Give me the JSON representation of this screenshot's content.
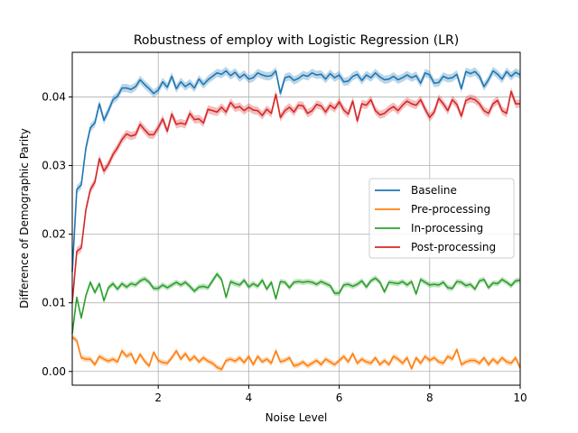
{
  "chart_data": {
    "type": "line",
    "title": "Robustness of employ with Logistic Regression (LR)",
    "xlabel": "Noise Level",
    "ylabel": "Difference of Demographic Parity",
    "xlim": [
      0.1,
      10
    ],
    "ylim": [
      -0.002,
      0.0465
    ],
    "xticks": [
      2,
      4,
      6,
      8,
      10
    ],
    "yticks": [
      0.0,
      0.01,
      0.02,
      0.03,
      0.04
    ],
    "ytick_labels": [
      "0.00",
      "0.01",
      "0.02",
      "0.03",
      "0.04"
    ],
    "grid": true,
    "legend_position": "center-right",
    "colors": {
      "Baseline": "#1f77b4",
      "Pre-processing": "#ff7f0e",
      "In-processing": "#2ca02c",
      "Post-processing": "#d62728"
    },
    "x": [
      0.1,
      0.2,
      0.3,
      0.4,
      0.5,
      0.6,
      0.7,
      0.8,
      0.9,
      1.0,
      1.1,
      1.2,
      1.3,
      1.4,
      1.5,
      1.6,
      1.7,
      1.8,
      1.9,
      2.0,
      2.1,
      2.2,
      2.3,
      2.4,
      2.5,
      2.6,
      2.7,
      2.8,
      2.9,
      3.0,
      3.1,
      3.2,
      3.3,
      3.4,
      3.5,
      3.6,
      3.7,
      3.8,
      3.9,
      4.0,
      4.1,
      4.2,
      4.3,
      4.4,
      4.5,
      4.6,
      4.7,
      4.8,
      4.9,
      5.0,
      5.1,
      5.2,
      5.3,
      5.4,
      5.5,
      5.6,
      5.7,
      5.8,
      5.9,
      6.0,
      6.1,
      6.2,
      6.3,
      6.4,
      6.5,
      6.6,
      6.7,
      6.8,
      6.9,
      7.0,
      7.1,
      7.2,
      7.3,
      7.4,
      7.5,
      7.6,
      7.7,
      7.8,
      7.9,
      8.0,
      8.1,
      8.2,
      8.3,
      8.4,
      8.5,
      8.6,
      8.7,
      8.8,
      8.9,
      9.0,
      9.1,
      9.2,
      9.3,
      9.4,
      9.5,
      9.6,
      9.7,
      9.8,
      9.9,
      10.0
    ],
    "series": [
      {
        "name": "Baseline",
        "values": [
          0.0145,
          0.0265,
          0.0272,
          0.0325,
          0.0355,
          0.0362,
          0.039,
          0.0366,
          0.038,
          0.0396,
          0.0401,
          0.0413,
          0.0413,
          0.0411,
          0.0415,
          0.0425,
          0.0418,
          0.0412,
          0.0405,
          0.041,
          0.0422,
          0.0414,
          0.043,
          0.0412,
          0.0422,
          0.0415,
          0.042,
          0.0413,
          0.0426,
          0.0418,
          0.0425,
          0.043,
          0.0435,
          0.0433,
          0.0438,
          0.0431,
          0.0436,
          0.0428,
          0.0433,
          0.0426,
          0.0428,
          0.0435,
          0.0432,
          0.043,
          0.0431,
          0.0438,
          0.0405,
          0.0428,
          0.043,
          0.0424,
          0.0427,
          0.0432,
          0.043,
          0.0435,
          0.0432,
          0.0433,
          0.0426,
          0.0434,
          0.0428,
          0.0432,
          0.0422,
          0.0423,
          0.043,
          0.0433,
          0.0424,
          0.0432,
          0.0428,
          0.0435,
          0.0429,
          0.0425,
          0.0426,
          0.043,
          0.0425,
          0.0428,
          0.0432,
          0.0428,
          0.0431,
          0.042,
          0.0435,
          0.0432,
          0.042,
          0.0421,
          0.043,
          0.0427,
          0.0428,
          0.0433,
          0.0412,
          0.0437,
          0.0434,
          0.0437,
          0.043,
          0.0415,
          0.0425,
          0.0438,
          0.0433,
          0.0426,
          0.0437,
          0.043,
          0.0436,
          0.0432
        ]
      },
      {
        "name": "Pre-processing",
        "values": [
          0.005,
          0.0045,
          0.002,
          0.0018,
          0.0018,
          0.001,
          0.0022,
          0.0018,
          0.0015,
          0.0018,
          0.0014,
          0.003,
          0.0022,
          0.0026,
          0.0012,
          0.0025,
          0.0015,
          0.0008,
          0.0028,
          0.0016,
          0.0013,
          0.0012,
          0.002,
          0.003,
          0.0018,
          0.0026,
          0.0016,
          0.0022,
          0.0014,
          0.002,
          0.0015,
          0.0012,
          0.0006,
          0.0003,
          0.0016,
          0.0018,
          0.0015,
          0.002,
          0.0013,
          0.0022,
          0.001,
          0.0022,
          0.0014,
          0.0018,
          0.0012,
          0.003,
          0.0014,
          0.0016,
          0.002,
          0.0008,
          0.001,
          0.0014,
          0.0008,
          0.0012,
          0.0016,
          0.001,
          0.0018,
          0.0014,
          0.001,
          0.0016,
          0.0022,
          0.0014,
          0.0026,
          0.0012,
          0.0018,
          0.0014,
          0.0012,
          0.002,
          0.001,
          0.0016,
          0.001,
          0.0022,
          0.0018,
          0.0012,
          0.002,
          0.0004,
          0.002,
          0.0012,
          0.0022,
          0.0016,
          0.002,
          0.0014,
          0.0012,
          0.0022,
          0.0018,
          0.0032,
          0.001,
          0.0014,
          0.0016,
          0.0016,
          0.0012,
          0.002,
          0.001,
          0.0018,
          0.0012,
          0.002,
          0.0014,
          0.0012,
          0.002,
          0.0005
        ]
      },
      {
        "name": "In-processing",
        "values": [
          0.0055,
          0.0108,
          0.0078,
          0.011,
          0.013,
          0.0115,
          0.0128,
          0.0103,
          0.0122,
          0.0128,
          0.012,
          0.0128,
          0.0123,
          0.0128,
          0.0126,
          0.0132,
          0.0135,
          0.013,
          0.0121,
          0.0121,
          0.0126,
          0.0122,
          0.0126,
          0.013,
          0.0126,
          0.013,
          0.0124,
          0.0117,
          0.0123,
          0.0124,
          0.0122,
          0.0132,
          0.0142,
          0.0134,
          0.0108,
          0.0131,
          0.0128,
          0.0126,
          0.0133,
          0.0123,
          0.0128,
          0.0124,
          0.0133,
          0.012,
          0.013,
          0.0106,
          0.0131,
          0.013,
          0.0122,
          0.013,
          0.0131,
          0.013,
          0.0131,
          0.013,
          0.0127,
          0.0131,
          0.0128,
          0.0125,
          0.0114,
          0.0114,
          0.0126,
          0.0127,
          0.0124,
          0.0127,
          0.0132,
          0.0123,
          0.0132,
          0.0136,
          0.013,
          0.0116,
          0.013,
          0.0129,
          0.0128,
          0.0131,
          0.0126,
          0.0131,
          0.0113,
          0.0134,
          0.013,
          0.0126,
          0.0127,
          0.0126,
          0.013,
          0.0122,
          0.0121,
          0.0131,
          0.013,
          0.0125,
          0.0127,
          0.012,
          0.0132,
          0.0134,
          0.0122,
          0.0129,
          0.0128,
          0.0134,
          0.013,
          0.0125,
          0.0132,
          0.0133
        ]
      },
      {
        "name": "Post-processing",
        "values": [
          0.01,
          0.0175,
          0.018,
          0.0235,
          0.0265,
          0.0276,
          0.031,
          0.0292,
          0.0302,
          0.0316,
          0.0326,
          0.0338,
          0.0346,
          0.0343,
          0.0345,
          0.036,
          0.0352,
          0.0345,
          0.0345,
          0.0355,
          0.0368,
          0.035,
          0.0375,
          0.036,
          0.0362,
          0.036,
          0.0376,
          0.0367,
          0.0368,
          0.0362,
          0.0382,
          0.038,
          0.0378,
          0.0385,
          0.0378,
          0.0392,
          0.0384,
          0.0386,
          0.038,
          0.0385,
          0.0381,
          0.038,
          0.0373,
          0.0382,
          0.0376,
          0.0404,
          0.037,
          0.038,
          0.0385,
          0.0378,
          0.0388,
          0.0387,
          0.0376,
          0.038,
          0.0389,
          0.0387,
          0.0378,
          0.0388,
          0.0383,
          0.0393,
          0.0381,
          0.0375,
          0.0394,
          0.0365,
          0.039,
          0.0388,
          0.0396,
          0.038,
          0.0374,
          0.0376,
          0.0382,
          0.0386,
          0.038,
          0.0388,
          0.0394,
          0.039,
          0.0388,
          0.0396,
          0.0382,
          0.037,
          0.0378,
          0.0398,
          0.039,
          0.038,
          0.0396,
          0.0389,
          0.0372,
          0.0395,
          0.0398,
          0.0396,
          0.039,
          0.038,
          0.0376,
          0.039,
          0.0395,
          0.038,
          0.0376,
          0.0408,
          0.039,
          0.039
        ]
      }
    ]
  }
}
